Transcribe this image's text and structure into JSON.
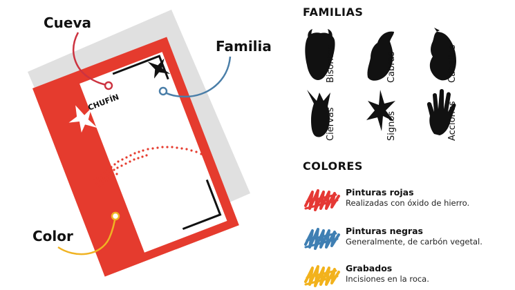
{
  "callouts": {
    "cueva": "Cueva",
    "familia": "Familia",
    "color": "Color",
    "sample_cave_name": "CHUFÍN"
  },
  "familias": {
    "title": "FAMILIAS",
    "items": [
      {
        "label": "Bisontes",
        "icon": "bison-head-icon"
      },
      {
        "label": "Cabras",
        "icon": "goat-head-icon"
      },
      {
        "label": "Caballos",
        "icon": "horse-head-icon"
      },
      {
        "label": "Ciervas",
        "icon": "deer-head-icon"
      },
      {
        "label": "Signos",
        "icon": "sign-symbol-icon"
      },
      {
        "label": "Acciones",
        "icon": "hand-print-icon"
      }
    ]
  },
  "colores": {
    "title": "COLORES",
    "items": [
      {
        "name": "Pinturas rojas",
        "desc": "Realizadas con óxido de hierro.",
        "color": "#e53935"
      },
      {
        "name": "Pinturas negras",
        "desc": "Generalmente, de carbón vegetal.",
        "color": "#3f7fb3"
      },
      {
        "name": "Grabados",
        "desc": "Incisiones en la roca.",
        "color": "#f2b21c"
      }
    ]
  },
  "colors": {
    "card_red": "#e53b2e",
    "card_shadow": "#e0e0e0",
    "ink": "#111111",
    "callout_cueva": "#cc3340",
    "callout_familia": "#4a7ea8",
    "callout_color": "#f0b323"
  }
}
